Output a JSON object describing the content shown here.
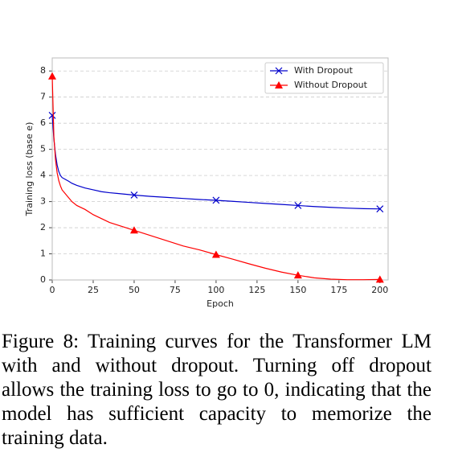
{
  "chart_data": {
    "type": "line",
    "xlabel": "Epoch",
    "ylabel": "Training loss (base e)",
    "x": [
      0,
      1,
      2,
      3,
      4,
      5,
      6,
      8,
      10,
      12,
      15,
      20,
      25,
      30,
      35,
      40,
      45,
      50,
      60,
      70,
      80,
      90,
      100,
      110,
      120,
      130,
      140,
      150,
      160,
      170,
      180,
      190,
      200
    ],
    "series": [
      {
        "name": "With Dropout",
        "color": "#0000cc",
        "marker": "x",
        "values": [
          6.3,
          5.4,
          4.8,
          4.4,
          4.15,
          4.0,
          3.92,
          3.85,
          3.78,
          3.7,
          3.62,
          3.52,
          3.45,
          3.38,
          3.34,
          3.31,
          3.28,
          3.25,
          3.2,
          3.16,
          3.12,
          3.08,
          3.05,
          3.01,
          2.97,
          2.93,
          2.89,
          2.85,
          2.81,
          2.78,
          2.75,
          2.73,
          2.72
        ]
      },
      {
        "name": "Without Dropout",
        "color": "#ff0000",
        "marker": "triangle",
        "values": [
          7.8,
          5.5,
          4.6,
          4.1,
          3.8,
          3.6,
          3.45,
          3.3,
          3.15,
          3.0,
          2.85,
          2.7,
          2.5,
          2.35,
          2.2,
          2.1,
          2.0,
          1.9,
          1.7,
          1.5,
          1.3,
          1.15,
          0.97,
          0.8,
          0.62,
          0.45,
          0.3,
          0.18,
          0.08,
          0.03,
          0.01,
          0.01,
          0.02
        ]
      }
    ],
    "marker_every": 50,
    "xlim": [
      0,
      205
    ],
    "xticks": [
      0,
      25,
      50,
      75,
      100,
      125,
      150,
      175,
      200
    ],
    "ylim": [
      0,
      8.5
    ],
    "yticks": [
      0,
      1,
      2,
      3,
      4,
      5,
      6,
      7,
      8
    ],
    "grid": true,
    "legend": "upper right"
  },
  "caption": "Figure 8: Training curves for the Transformer LM with and without dropout. Turning off dropout allows the training loss to go to 0, indicating that the model has sufficient capacity to memorize the training data."
}
